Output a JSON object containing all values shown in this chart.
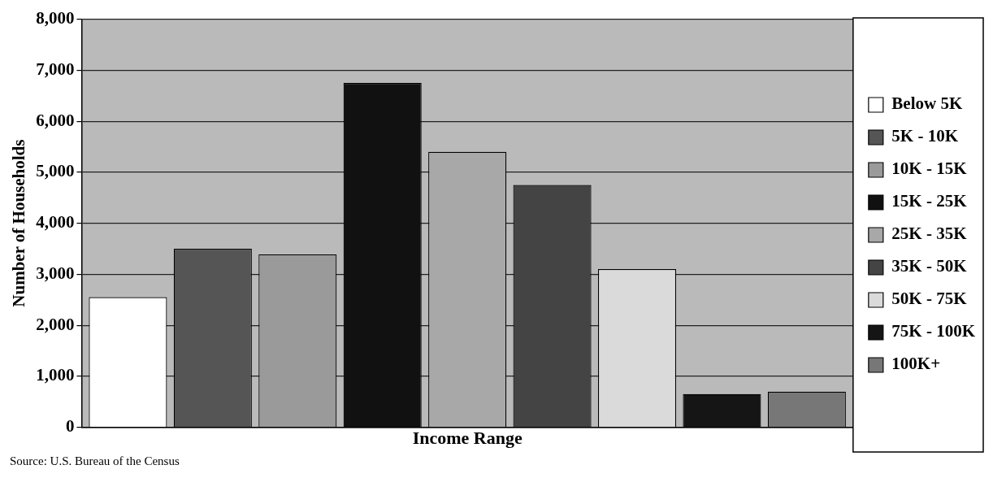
{
  "chart_data": {
    "type": "bar",
    "xlabel": "Income Range",
    "ylabel": "Number of Households",
    "categories": [
      null
    ],
    "series": [
      {
        "name": "Below 5K",
        "color": "#ffffff",
        "values": [
          2550
        ]
      },
      {
        "name": "5K - 10K",
        "color": "#555555",
        "values": [
          3500
        ]
      },
      {
        "name": "10K - 15K",
        "color": "#9a9a9a",
        "values": [
          3390
        ]
      },
      {
        "name": "15K - 25K",
        "color": "#111111",
        "values": [
          6750
        ]
      },
      {
        "name": "25K - 35K",
        "color": "#a8a8a8",
        "values": [
          5400
        ]
      },
      {
        "name": "35K - 50K",
        "color": "#444444",
        "values": [
          4750
        ]
      },
      {
        "name": "50K - 75K",
        "color": "#dadada",
        "values": [
          3100
        ]
      },
      {
        "name": "75K - 100K",
        "color": "#151515",
        "values": [
          650
        ]
      },
      {
        "name": "100K+",
        "color": "#777777",
        "values": [
          700
        ]
      }
    ],
    "ylim": [
      0,
      8000
    ],
    "yticks": [
      0,
      {
        "value": 1000,
        "label": "1,000"
      },
      {
        "value": 2000,
        "label": "2,000"
      },
      {
        "value": 3000,
        "label": "3,000"
      },
      {
        "value": 4000,
        "label": "4,000"
      },
      {
        "value": 5000,
        "label": "5,000"
      },
      {
        "value": 6000,
        "label": "6,000"
      },
      {
        "value": 7000,
        "label": "7,000"
      },
      {
        "value": 8000,
        "label": "8,000"
      }
    ],
    "grid": "y",
    "legend": "right",
    "tick_labels": "y",
    "annotations": [
      "Source: U.S. Bureau of the Census"
    ]
  }
}
